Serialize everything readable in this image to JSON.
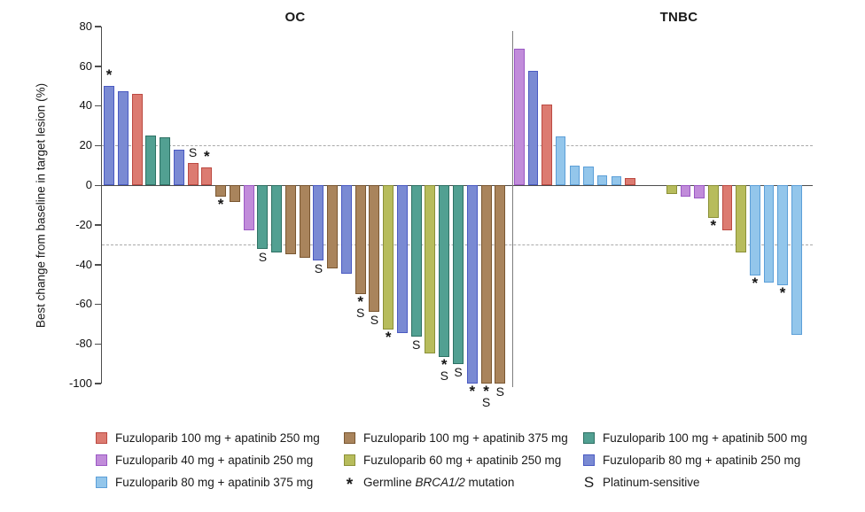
{
  "chart_data": {
    "type": "bar",
    "subtype": "waterfall",
    "title": "",
    "ylabel": "Best change from baseline in target lesion (%)",
    "ylim": [
      -100,
      80
    ],
    "yticks": [
      80,
      60,
      40,
      20,
      0,
      -20,
      -40,
      -60,
      -80,
      -100
    ],
    "reference_lines": {
      "upper": 20,
      "lower": -30
    },
    "flag_symbols": {
      "brca": "*",
      "plat": "S"
    },
    "flag_meanings": {
      "brca": "Germline BRCA1/2 mutation",
      "plat": "Platinum-sensitive"
    },
    "groups": {
      "f100_a250": {
        "label": "Fuzuloparib 100 mg + apatinib 250 mg",
        "fill": "#DC7B71",
        "border": "#BC4A42"
      },
      "f40_a250": {
        "label": "Fuzuloparib 40 mg + apatinib 250 mg",
        "fill": "#C18CDA",
        "border": "#9B59C4"
      },
      "f80_a375": {
        "label": "Fuzuloparib 80 mg + apatinib 375 mg",
        "fill": "#93C6EB",
        "border": "#5C9FD8"
      },
      "f100_a375": {
        "label": "Fuzuloparib 100 mg + apatinib 375 mg",
        "fill": "#A9845C",
        "border": "#7A5731"
      },
      "f60_a250": {
        "label": "Fuzuloparib 60 mg + apatinib 250 mg",
        "fill": "#B7BC5C",
        "border": "#8B9038"
      },
      "f100_a500": {
        "label": "Fuzuloparib 100 mg + apatinib 500 mg",
        "fill": "#52A092",
        "border": "#2E7164"
      },
      "f80_a250": {
        "label": "Fuzuloparib 80 mg + apatinib 250 mg",
        "fill": "#7A8AD3",
        "border": "#4A5AC2"
      }
    },
    "panels": [
      {
        "title": "OC",
        "bars": [
          {
            "group": "f80_a250",
            "value": 50,
            "flags": [
              "brca"
            ]
          },
          {
            "group": "f80_a250",
            "value": 47.5,
            "flags": []
          },
          {
            "group": "f100_a250",
            "value": 46,
            "flags": []
          },
          {
            "group": "f100_a500",
            "value": 25,
            "flags": []
          },
          {
            "group": "f100_a500",
            "value": 24,
            "flags": []
          },
          {
            "group": "f80_a250",
            "value": 18,
            "flags": []
          },
          {
            "group": "f100_a250",
            "value": 11,
            "flags": [
              "plat"
            ]
          },
          {
            "group": "f100_a250",
            "value": 9,
            "flags": [
              "brca"
            ]
          },
          {
            "group": "f100_a375",
            "value": -6,
            "flags": [
              "brca"
            ]
          },
          {
            "group": "f100_a375",
            "value": -8.5,
            "flags": []
          },
          {
            "group": "f40_a250",
            "value": -23,
            "flags": []
          },
          {
            "group": "f100_a500",
            "value": -32,
            "flags": [
              "plat"
            ]
          },
          {
            "group": "f100_a500",
            "value": -34,
            "flags": []
          },
          {
            "group": "f100_a375",
            "value": -35,
            "flags": []
          },
          {
            "group": "f100_a375",
            "value": -36.5,
            "flags": []
          },
          {
            "group": "f80_a250",
            "value": -38,
            "flags": [
              "plat"
            ]
          },
          {
            "group": "f100_a375",
            "value": -42,
            "flags": []
          },
          {
            "group": "f80_a250",
            "value": -44.5,
            "flags": []
          },
          {
            "group": "f100_a375",
            "value": -55,
            "flags": [
              "brca",
              "plat"
            ]
          },
          {
            "group": "f100_a375",
            "value": -64,
            "flags": [
              "plat"
            ]
          },
          {
            "group": "f60_a250",
            "value": -73,
            "flags": [
              "brca"
            ]
          },
          {
            "group": "f80_a250",
            "value": -74.5,
            "flags": []
          },
          {
            "group": "f100_a500",
            "value": -76.5,
            "flags": [
              "plat"
            ]
          },
          {
            "group": "f60_a250",
            "value": -85,
            "flags": []
          },
          {
            "group": "f100_a500",
            "value": -86.5,
            "flags": [
              "brca",
              "plat"
            ]
          },
          {
            "group": "f100_a500",
            "value": -90,
            "flags": [
              "plat"
            ]
          },
          {
            "group": "f80_a250",
            "value": -100,
            "flags": [
              "brca"
            ]
          },
          {
            "group": "f100_a375",
            "value": -100,
            "flags": [
              "brca",
              "plat"
            ]
          },
          {
            "group": "f100_a375",
            "value": -100,
            "flags": [
              "plat"
            ]
          }
        ]
      },
      {
        "title": "TNBC",
        "bars": [
          {
            "group": "f40_a250",
            "value": 69,
            "flags": []
          },
          {
            "group": "f80_a250",
            "value": 57.5,
            "flags": []
          },
          {
            "group": "f100_a250",
            "value": 40.5,
            "flags": []
          },
          {
            "group": "f80_a375",
            "value": 24.5,
            "flags": []
          },
          {
            "group": "f80_a375",
            "value": 10,
            "flags": []
          },
          {
            "group": "f80_a375",
            "value": 9.5,
            "flags": []
          },
          {
            "group": "f80_a375",
            "value": 5,
            "flags": []
          },
          {
            "group": "f80_a375",
            "value": 4.5,
            "flags": []
          },
          {
            "group": "f100_a250",
            "value": 3.5,
            "flags": []
          },
          {
            "group": null,
            "value": 0,
            "flags": []
          },
          {
            "group": null,
            "value": 0,
            "flags": []
          },
          {
            "group": "f60_a250",
            "value": -4.5,
            "flags": []
          },
          {
            "group": "f40_a250",
            "value": -6,
            "flags": []
          },
          {
            "group": "f40_a250",
            "value": -6.5,
            "flags": []
          },
          {
            "group": "f60_a250",
            "value": -16.5,
            "flags": [
              "brca"
            ]
          },
          {
            "group": "f100_a250",
            "value": -23,
            "flags": []
          },
          {
            "group": "f60_a250",
            "value": -34,
            "flags": []
          },
          {
            "group": "f80_a375",
            "value": -45.5,
            "flags": [
              "brca"
            ]
          },
          {
            "group": "f80_a375",
            "value": -49,
            "flags": []
          },
          {
            "group": "f80_a375",
            "value": -50.5,
            "flags": [
              "brca"
            ]
          },
          {
            "group": "f80_a375",
            "value": -75.5,
            "flags": []
          }
        ]
      }
    ]
  },
  "legend": {
    "columns": [
      [
        {
          "type": "swatch",
          "group": "f100_a250"
        },
        {
          "type": "swatch",
          "group": "f40_a250"
        },
        {
          "type": "swatch",
          "group": "f80_a375"
        }
      ],
      [
        {
          "type": "swatch",
          "group": "f100_a375"
        },
        {
          "type": "swatch",
          "group": "f60_a250"
        },
        {
          "type": "symbol",
          "symbol": "*",
          "parts": [
            {
              "t": "Germline "
            },
            {
              "t": "BRCA1/2",
              "i": true
            },
            {
              "t": " mutation"
            }
          ]
        }
      ],
      [
        {
          "type": "swatch",
          "group": "f100_a500"
        },
        {
          "type": "swatch",
          "group": "f80_a250"
        },
        {
          "type": "symbol",
          "symbol": "S",
          "parts": [
            {
              "t": "Platinum-sensitive"
            }
          ]
        }
      ]
    ]
  }
}
